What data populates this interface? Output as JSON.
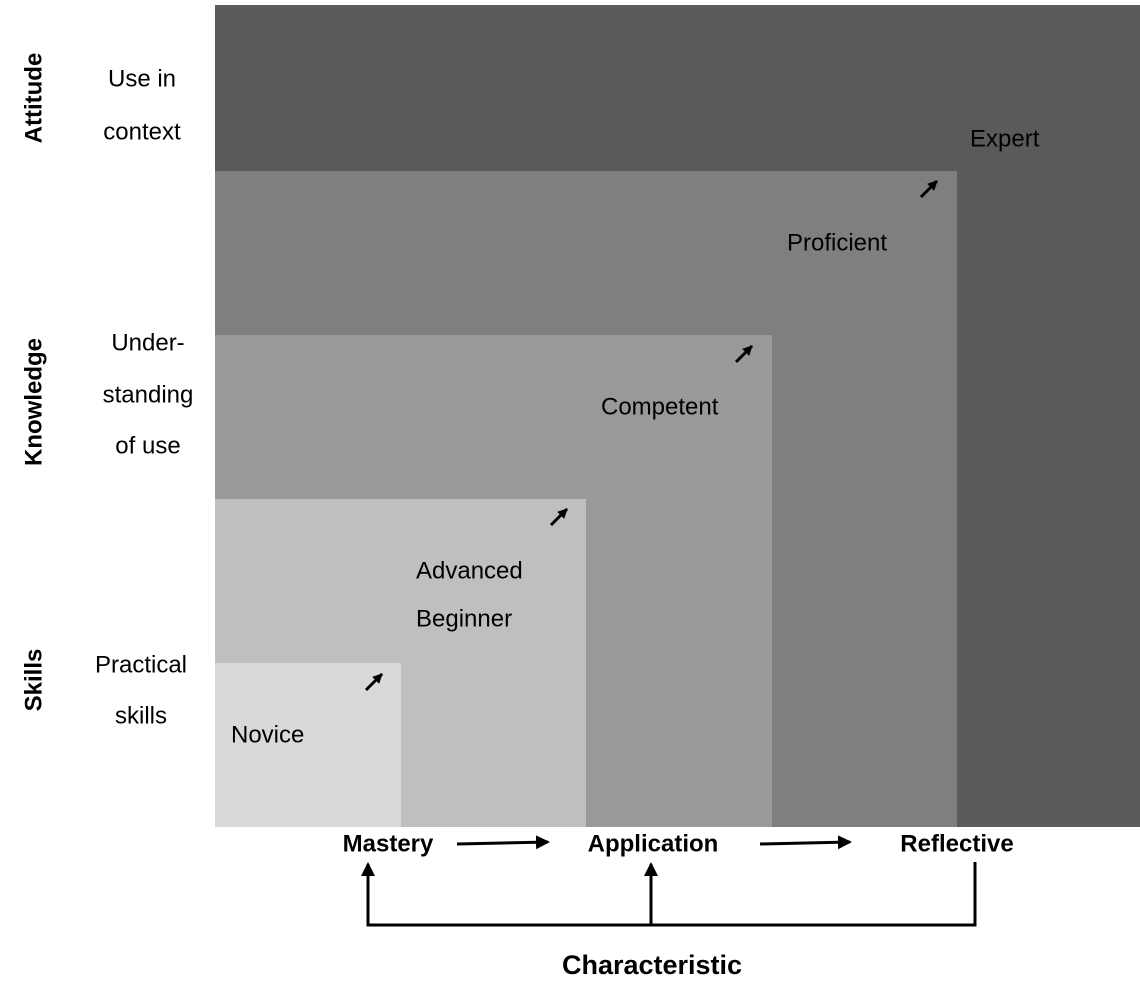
{
  "levels": [
    "Novice",
    [
      "Advanced",
      "Beginner"
    ],
    "Competent",
    "Proficient",
    "Expert"
  ],
  "rows": [
    [
      "Use in",
      "context"
    ],
    [
      "Under-",
      "standing",
      "of use"
    ],
    [
      "Practical",
      "skills"
    ]
  ],
  "dimensions": [
    "Attitude",
    "Knowledge",
    "Skills"
  ],
  "characteristics": [
    "Mastery",
    "Application",
    "Reflective"
  ],
  "axis_title": "Characteristic"
}
